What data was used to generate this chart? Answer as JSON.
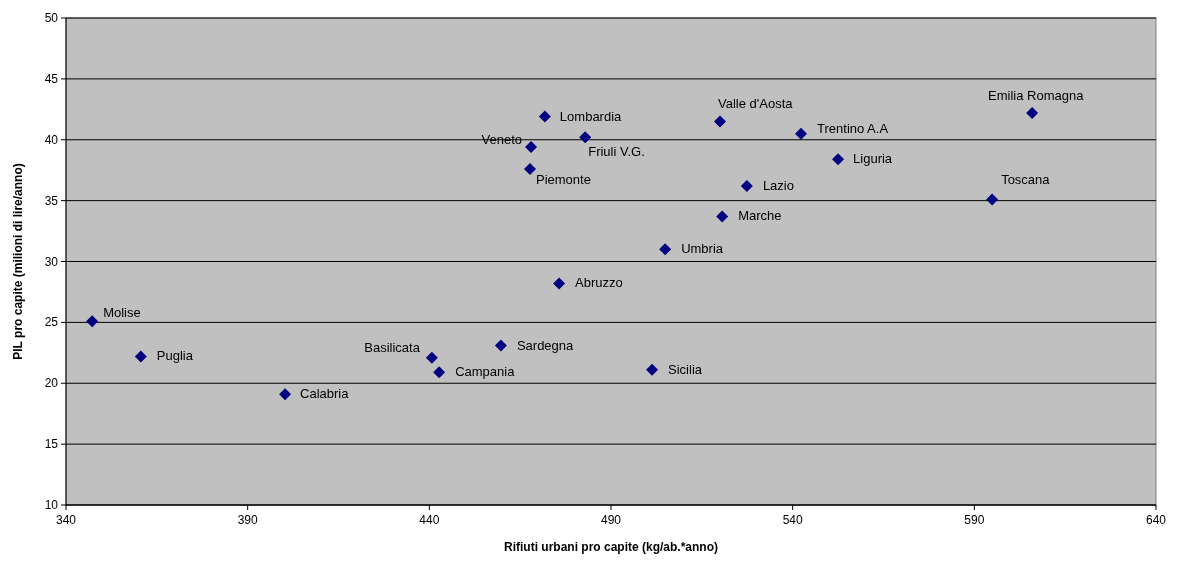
{
  "chart_data": {
    "type": "scatter",
    "xlabel": "Rifiuti urbani pro capite (kg/ab.*anno)",
    "ylabel": "PIL pro capite (milioni di lire/anno)",
    "xlim": [
      340,
      640
    ],
    "xticks": [
      340,
      390,
      440,
      490,
      540,
      590,
      640
    ],
    "ylim": [
      10,
      50
    ],
    "yticks": [
      10,
      15,
      20,
      25,
      30,
      35,
      40,
      45,
      50
    ],
    "grid": "y",
    "marker": "diamond",
    "series": [
      {
        "color": "#000080",
        "x": [
          347.2,
          360.6,
          400.3,
          440.7,
          442.7,
          459.7,
          501.3,
          475.7,
          504.9,
          520.6,
          527.4,
          467.7,
          468.0,
          471.8,
          482.9,
          520.0,
          542.3,
          552.5,
          594.9,
          605.9
        ],
        "values": [
          25.1,
          22.2,
          19.1,
          22.1,
          20.9,
          23.1,
          21.1,
          28.2,
          31.0,
          33.7,
          36.2,
          37.6,
          39.4,
          41.9,
          40.2,
          41.5,
          40.5,
          38.4,
          35.1,
          42.2
        ]
      }
    ],
    "annotations": [
      {
        "text": "Molise",
        "x": 347.2,
        "y": 25.1
      },
      {
        "text": "Puglia",
        "x": 360.6,
        "y": 22.2
      },
      {
        "text": "Calabria",
        "x": 400.3,
        "y": 19.1
      },
      {
        "text": "Basilicata",
        "x": 440.7,
        "y": 22.1
      },
      {
        "text": "Campania",
        "x": 442.7,
        "y": 20.9
      },
      {
        "text": "Sardegna",
        "x": 459.7,
        "y": 23.1
      },
      {
        "text": "Sicilia",
        "x": 501.3,
        "y": 21.1
      },
      {
        "text": "Abruzzo",
        "x": 475.7,
        "y": 28.2
      },
      {
        "text": "Umbria",
        "x": 504.9,
        "y": 31.0
      },
      {
        "text": "Marche",
        "x": 520.6,
        "y": 33.7
      },
      {
        "text": "Lazio",
        "x": 527.4,
        "y": 36.2
      },
      {
        "text": "Piemonte",
        "x": 467.7,
        "y": 37.6
      },
      {
        "text": "Veneto",
        "x": 468.0,
        "y": 39.4
      },
      {
        "text": "Lombardia",
        "x": 471.8,
        "y": 41.9
      },
      {
        "text": "Friuli V.G.",
        "x": 482.9,
        "y": 40.2
      },
      {
        "text": "Valle d'Aosta",
        "x": 520.0,
        "y": 41.5
      },
      {
        "text": "Trentino A.A",
        "x": 542.3,
        "y": 40.5
      },
      {
        "text": "Liguria",
        "x": 552.5,
        "y": 38.4
      },
      {
        "text": "Toscana",
        "x": 594.9,
        "y": 35.1
      },
      {
        "text": "Emilia Romagna",
        "x": 605.9,
        "y": 42.2
      }
    ]
  }
}
